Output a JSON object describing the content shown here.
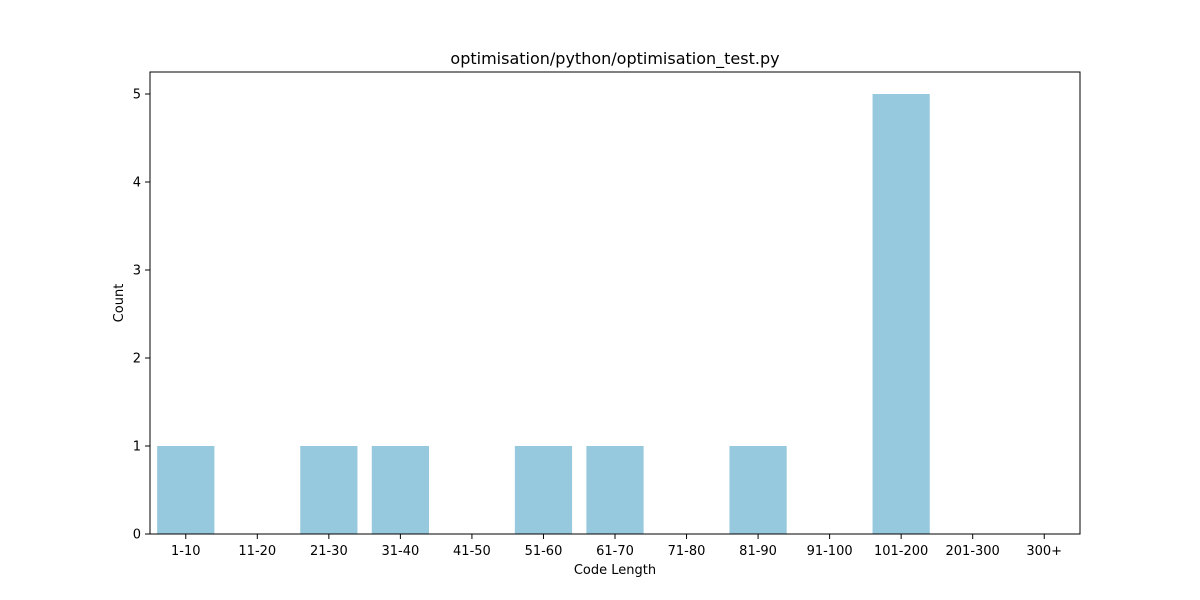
{
  "chart_data": {
    "type": "bar",
    "title": "optimisation/python/optimisation_test.py",
    "xlabel": "Code Length",
    "ylabel": "Count",
    "categories": [
      "1-10",
      "11-20",
      "21-30",
      "31-40",
      "41-50",
      "51-60",
      "61-70",
      "71-80",
      "81-90",
      "91-100",
      "101-200",
      "201-300",
      "300+"
    ],
    "values": [
      1,
      0,
      1,
      1,
      0,
      1,
      1,
      0,
      1,
      0,
      5,
      0,
      0
    ],
    "ylim": [
      0,
      5.25
    ],
    "yticks": [
      0,
      1,
      2,
      3,
      4,
      5
    ],
    "bar_color": "#96c9de",
    "grid": false,
    "legend": "none"
  }
}
